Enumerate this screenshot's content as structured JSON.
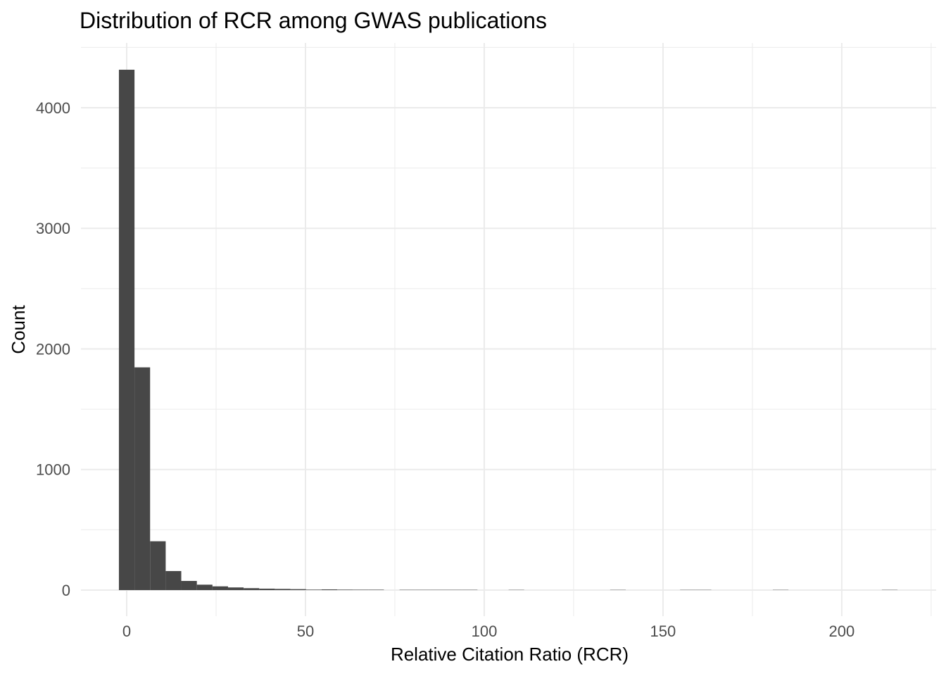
{
  "chart_data": {
    "type": "bar",
    "variant": "histogram",
    "title": "Distribution of RCR among GWAS publications",
    "xlabel": "Relative Citation Ratio (RCR)",
    "ylabel": "Count",
    "x_ticks": [
      0,
      50,
      100,
      150,
      200
    ],
    "x_minor_ticks": [
      25,
      75,
      125,
      175,
      225
    ],
    "y_ticks": [
      0,
      1000,
      2000,
      3000,
      4000
    ],
    "y_minor_ticks": [
      500,
      1500,
      2500,
      3500,
      4500
    ],
    "xlim": [
      -12.8,
      226.4
    ],
    "ylim": [
      -216,
      4537
    ],
    "grid": true,
    "legend": false,
    "bin_width": 4.36,
    "bins": [
      {
        "x": 0,
        "count": 4315
      },
      {
        "x": 4.36,
        "count": 1847
      },
      {
        "x": 8.72,
        "count": 405
      },
      {
        "x": 13.08,
        "count": 158
      },
      {
        "x": 17.44,
        "count": 76
      },
      {
        "x": 21.8,
        "count": 45
      },
      {
        "x": 26.16,
        "count": 31
      },
      {
        "x": 30.52,
        "count": 22
      },
      {
        "x": 34.88,
        "count": 16
      },
      {
        "x": 39.24,
        "count": 12
      },
      {
        "x": 43.6,
        "count": 10
      },
      {
        "x": 47.96,
        "count": 8
      },
      {
        "x": 52.32,
        "count": 5
      },
      {
        "x": 56.68,
        "count": 6
      },
      {
        "x": 61.04,
        "count": 5
      },
      {
        "x": 65.4,
        "count": 4
      },
      {
        "x": 69.76,
        "count": 4
      },
      {
        "x": 78.48,
        "count": 2
      },
      {
        "x": 82.84,
        "count": 2
      },
      {
        "x": 87.2,
        "count": 2
      },
      {
        "x": 91.56,
        "count": 2
      },
      {
        "x": 95.92,
        "count": 2
      },
      {
        "x": 109.0,
        "count": 1
      },
      {
        "x": 137.4,
        "count": 1
      },
      {
        "x": 156.96,
        "count": 1
      },
      {
        "x": 161.32,
        "count": 1
      },
      {
        "x": 182.9,
        "count": 1
      },
      {
        "x": 213.4,
        "count": 1
      }
    ],
    "colors": {
      "bar": "#474747",
      "grid": "#EBEBEB",
      "tick_text": "#4D4D4D",
      "title_text": "#000000",
      "background": "#FFFFFF"
    }
  }
}
